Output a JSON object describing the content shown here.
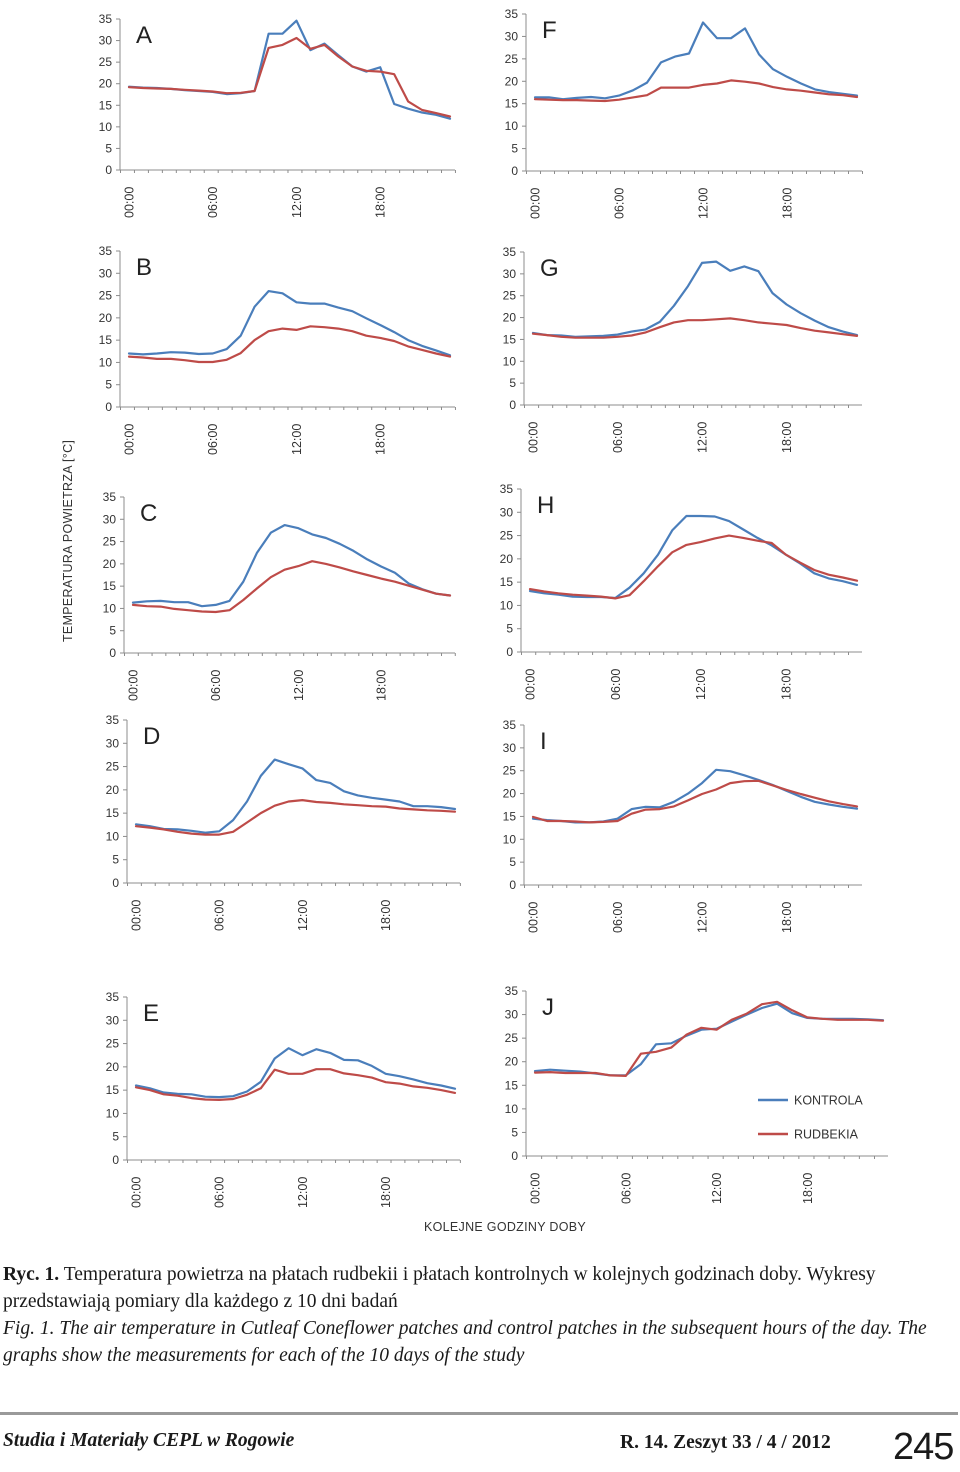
{
  "figure": {
    "ylabel": "TEMPERATURA POWIETRZA [°C]",
    "xlabel": "KOLEJNE GODZINY DOBY",
    "legend": {
      "kontrola": "KONTROLA",
      "rudbekia": "RUDBEKIA"
    },
    "colors": {
      "kontrola": "#4a7ebb",
      "rudbekia": "#be4b48",
      "axis": "#8c8c8c",
      "text": "#333333"
    }
  },
  "chart_data": [
    {
      "type": "line",
      "panel": "A",
      "hours": [
        0,
        1,
        2,
        3,
        4,
        5,
        6,
        7,
        8,
        9,
        10,
        11,
        12,
        13,
        14,
        15,
        16,
        17,
        18,
        19,
        20,
        21,
        22,
        23
      ],
      "x_ticks": [
        "00:00",
        "06:00",
        "12:00",
        "18:00"
      ],
      "y_ticks": [
        0,
        5,
        10,
        15,
        20,
        25,
        30,
        35
      ],
      "ylim": [
        0,
        35
      ],
      "series": [
        {
          "name": "KONTROLA",
          "values": [
            19.3,
            19.1,
            19.0,
            18.8,
            18.5,
            18.3,
            18.1,
            17.6,
            17.8,
            18.3,
            31.6,
            31.6,
            34.6,
            27.8,
            29.3,
            26.6,
            24.0,
            22.8,
            23.8,
            15.3,
            14.2,
            13.3,
            12.8,
            11.9
          ]
        },
        {
          "name": "RUDBEKIA",
          "values": [
            19.2,
            19.0,
            18.9,
            18.8,
            18.6,
            18.4,
            18.2,
            17.8,
            17.9,
            18.3,
            28.3,
            29.0,
            30.6,
            28.1,
            29.0,
            26.3,
            24.0,
            23.0,
            22.8,
            22.2,
            15.9,
            13.9,
            13.2,
            12.4
          ]
        }
      ]
    },
    {
      "type": "line",
      "panel": "B",
      "hours": [
        0,
        1,
        2,
        3,
        4,
        5,
        6,
        7,
        8,
        9,
        10,
        11,
        12,
        13,
        14,
        15,
        16,
        17,
        18,
        19,
        20,
        21,
        22,
        23
      ],
      "x_ticks": [
        "00:00",
        "06:00",
        "12:00",
        "18:00"
      ],
      "y_ticks": [
        0,
        5,
        10,
        15,
        20,
        25,
        30,
        35
      ],
      "ylim": [
        0,
        35
      ],
      "series": [
        {
          "name": "KONTROLA",
          "values": [
            12.0,
            11.8,
            12.0,
            12.3,
            12.2,
            11.9,
            12.0,
            13.0,
            16.0,
            22.5,
            26.0,
            25.5,
            23.5,
            23.2,
            23.2,
            22.3,
            21.5,
            19.9,
            18.4,
            16.8,
            15.0,
            13.7,
            12.7,
            11.6
          ]
        },
        {
          "name": "RUDBEKIA",
          "values": [
            11.3,
            11.1,
            10.8,
            10.8,
            10.5,
            10.1,
            10.1,
            10.6,
            12.1,
            15.0,
            17.0,
            17.6,
            17.3,
            18.1,
            17.9,
            17.6,
            17.0,
            16.0,
            15.5,
            14.8,
            13.6,
            12.8,
            12.0,
            11.3
          ]
        }
      ]
    },
    {
      "type": "line",
      "panel": "C",
      "hours": [
        0,
        1,
        2,
        3,
        4,
        5,
        6,
        7,
        8,
        9,
        10,
        11,
        12,
        13,
        14,
        15,
        16,
        17,
        18,
        19,
        20,
        21,
        22,
        23
      ],
      "x_ticks": [
        "00:00",
        "06:00",
        "12:00",
        "18:00"
      ],
      "y_ticks": [
        0,
        5,
        10,
        15,
        20,
        25,
        30,
        35
      ],
      "ylim": [
        0,
        35
      ],
      "series": [
        {
          "name": "KONTROLA",
          "values": [
            11.3,
            11.6,
            11.7,
            11.4,
            11.4,
            10.5,
            10.8,
            11.7,
            16.0,
            22.5,
            27.0,
            28.7,
            28.0,
            26.6,
            25.8,
            24.5,
            22.9,
            21.0,
            19.4,
            18.0,
            15.6,
            14.3,
            13.3,
            12.9
          ]
        },
        {
          "name": "RUDBEKIA",
          "values": [
            10.8,
            10.5,
            10.4,
            9.9,
            9.6,
            9.3,
            9.2,
            9.6,
            11.9,
            14.5,
            17.0,
            18.7,
            19.5,
            20.6,
            20.0,
            19.2,
            18.3,
            17.5,
            16.7,
            16.0,
            15.1,
            14.2,
            13.3,
            12.9
          ]
        }
      ]
    },
    {
      "type": "line",
      "panel": "D",
      "hours": [
        0,
        1,
        2,
        3,
        4,
        5,
        6,
        7,
        8,
        9,
        10,
        11,
        12,
        13,
        14,
        15,
        16,
        17,
        18,
        19,
        20,
        21,
        22,
        23
      ],
      "x_ticks": [
        "00:00",
        "06:00",
        "12:00",
        "18:00"
      ],
      "y_ticks": [
        0,
        5,
        10,
        15,
        20,
        25,
        30,
        35
      ],
      "ylim": [
        0,
        35
      ],
      "series": [
        {
          "name": "KONTROLA",
          "values": [
            12.6,
            12.2,
            11.6,
            11.5,
            11.2,
            10.8,
            11.1,
            13.5,
            17.5,
            23.0,
            26.5,
            25.5,
            24.6,
            22.1,
            21.5,
            19.7,
            18.8,
            18.3,
            17.9,
            17.5,
            16.5,
            16.5,
            16.3,
            15.9
          ]
        },
        {
          "name": "RUDBEKIA",
          "values": [
            12.2,
            11.9,
            11.5,
            11.0,
            10.6,
            10.4,
            10.4,
            11.0,
            13.0,
            15.0,
            16.6,
            17.5,
            17.8,
            17.4,
            17.2,
            16.9,
            16.7,
            16.5,
            16.4,
            16.0,
            15.8,
            15.6,
            15.5,
            15.3
          ]
        }
      ]
    },
    {
      "type": "line",
      "panel": "E",
      "hours": [
        0,
        1,
        2,
        3,
        4,
        5,
        6,
        7,
        8,
        9,
        10,
        11,
        12,
        13,
        14,
        15,
        16,
        17,
        18,
        19,
        20,
        21,
        22,
        23
      ],
      "x_ticks": [
        "00:00",
        "06:00",
        "12:00",
        "18:00"
      ],
      "y_ticks": [
        0,
        5,
        10,
        15,
        20,
        25,
        30,
        35
      ],
      "ylim": [
        0,
        35
      ],
      "series": [
        {
          "name": "KONTROLA",
          "values": [
            16.0,
            15.4,
            14.5,
            14.2,
            14.1,
            13.6,
            13.5,
            13.7,
            14.7,
            16.8,
            21.8,
            24.0,
            22.5,
            23.8,
            23.0,
            21.5,
            21.4,
            20.2,
            18.5,
            18.0,
            17.3,
            16.5,
            16.0,
            15.3
          ]
        },
        {
          "name": "RUDBEKIA",
          "values": [
            15.6,
            15.0,
            14.1,
            13.8,
            13.3,
            13.0,
            12.9,
            13.1,
            14.0,
            15.4,
            19.4,
            18.5,
            18.5,
            19.5,
            19.5,
            18.6,
            18.2,
            17.7,
            16.7,
            16.4,
            15.8,
            15.5,
            15.0,
            14.4
          ]
        }
      ]
    },
    {
      "type": "line",
      "panel": "F",
      "hours": [
        0,
        1,
        2,
        3,
        4,
        5,
        6,
        7,
        8,
        9,
        10,
        11,
        12,
        13,
        14,
        15,
        16,
        17,
        18,
        19,
        20,
        21,
        22,
        23
      ],
      "x_ticks": [
        "00:00",
        "06:00",
        "12:00",
        "18:00"
      ],
      "y_ticks": [
        0,
        5,
        10,
        15,
        20,
        25,
        30,
        35
      ],
      "ylim": [
        0,
        35
      ],
      "series": [
        {
          "name": "KONTROLA",
          "values": [
            16.4,
            16.4,
            16.0,
            16.3,
            16.5,
            16.2,
            16.8,
            18.0,
            19.7,
            24.2,
            25.5,
            26.2,
            33.1,
            29.6,
            29.6,
            31.8,
            26.0,
            22.7,
            21.0,
            19.5,
            18.2,
            17.6,
            17.2,
            16.8
          ]
        },
        {
          "name": "RUDBEKIA",
          "values": [
            16.0,
            15.9,
            15.8,
            15.8,
            15.7,
            15.6,
            15.9,
            16.4,
            16.9,
            18.6,
            18.6,
            18.6,
            19.2,
            19.5,
            20.2,
            19.9,
            19.5,
            18.7,
            18.2,
            17.9,
            17.5,
            17.1,
            16.9,
            16.5
          ]
        }
      ]
    },
    {
      "type": "line",
      "panel": "G",
      "hours": [
        0,
        1,
        2,
        3,
        4,
        5,
        6,
        7,
        8,
        9,
        10,
        11,
        12,
        13,
        14,
        15,
        16,
        17,
        18,
        19,
        20,
        21,
        22,
        23
      ],
      "x_ticks": [
        "00:00",
        "06:00",
        "12:00",
        "18:00"
      ],
      "y_ticks": [
        0,
        5,
        10,
        15,
        20,
        25,
        30,
        35
      ],
      "ylim": [
        0,
        35
      ],
      "series": [
        {
          "name": "KONTROLA",
          "values": [
            16.5,
            16.0,
            15.9,
            15.6,
            15.7,
            15.8,
            16.1,
            16.8,
            17.3,
            19.0,
            22.7,
            27.2,
            32.5,
            32.8,
            30.7,
            31.7,
            30.6,
            25.6,
            23.0,
            21.0,
            19.3,
            17.8,
            16.8,
            16.0
          ]
        },
        {
          "name": "RUDBEKIA",
          "values": [
            16.3,
            16.0,
            15.6,
            15.4,
            15.4,
            15.4,
            15.6,
            15.9,
            16.6,
            17.8,
            18.9,
            19.4,
            19.4,
            19.6,
            19.8,
            19.4,
            18.9,
            18.6,
            18.3,
            17.6,
            17.0,
            16.6,
            16.2,
            15.8
          ]
        }
      ]
    },
    {
      "type": "line",
      "panel": "H",
      "hours": [
        0,
        1,
        2,
        3,
        4,
        5,
        6,
        7,
        8,
        9,
        10,
        11,
        12,
        13,
        14,
        15,
        16,
        17,
        18,
        19,
        20,
        21,
        22,
        23
      ],
      "x_ticks": [
        "00:00",
        "06:00",
        "12:00",
        "18:00"
      ],
      "y_ticks": [
        0,
        5,
        10,
        15,
        20,
        25,
        30,
        35
      ],
      "ylim": [
        0,
        35
      ],
      "series": [
        {
          "name": "KONTROLA",
          "values": [
            13.1,
            12.6,
            12.3,
            11.9,
            11.8,
            11.8,
            11.6,
            13.8,
            16.9,
            20.9,
            26.1,
            29.2,
            29.2,
            29.1,
            28.1,
            26.3,
            24.5,
            22.9,
            20.9,
            19.0,
            16.9,
            15.8,
            15.2,
            14.4
          ]
        },
        {
          "name": "RUDBEKIA",
          "values": [
            13.5,
            13.0,
            12.6,
            12.3,
            12.1,
            11.9,
            11.5,
            12.2,
            15.2,
            18.4,
            21.4,
            23.0,
            23.6,
            24.4,
            25.0,
            24.5,
            23.9,
            23.4,
            20.9,
            19.2,
            17.6,
            16.6,
            16.0,
            15.3
          ]
        }
      ]
    },
    {
      "type": "line",
      "panel": "I",
      "hours": [
        0,
        1,
        2,
        3,
        4,
        5,
        6,
        7,
        8,
        9,
        10,
        11,
        12,
        13,
        14,
        15,
        16,
        17,
        18,
        19,
        20,
        21,
        22,
        23
      ],
      "x_ticks": [
        "00:00",
        "06:00",
        "12:00",
        "18:00"
      ],
      "y_ticks": [
        0,
        5,
        10,
        15,
        20,
        25,
        30,
        35
      ],
      "ylim": [
        0,
        35
      ],
      "series": [
        {
          "name": "KONTROLA",
          "values": [
            14.5,
            14.2,
            14.0,
            13.7,
            13.7,
            13.9,
            14.5,
            16.6,
            17.1,
            17.0,
            18.2,
            20.0,
            22.3,
            25.2,
            24.9,
            24.0,
            23.0,
            21.9,
            20.6,
            19.3,
            18.2,
            17.6,
            17.1,
            16.7
          ]
        },
        {
          "name": "RUDBEKIA",
          "values": [
            14.9,
            14.0,
            14.0,
            13.9,
            13.7,
            13.8,
            14.0,
            15.6,
            16.5,
            16.6,
            17.2,
            18.5,
            19.9,
            20.9,
            22.3,
            22.7,
            22.8,
            21.8,
            20.8,
            19.9,
            19.1,
            18.3,
            17.7,
            17.2
          ]
        }
      ]
    },
    {
      "type": "line",
      "panel": "J",
      "hours": [
        0,
        1,
        2,
        3,
        4,
        5,
        6,
        7,
        8,
        9,
        10,
        11,
        12,
        13,
        14,
        15,
        16,
        17,
        18,
        19,
        20,
        21,
        22,
        23
      ],
      "x_ticks": [
        "00:00",
        "06:00",
        "12:00",
        "18:00"
      ],
      "y_ticks": [
        0,
        5,
        10,
        15,
        20,
        25,
        30,
        35
      ],
      "ylim": [
        0,
        35
      ],
      "series": [
        {
          "name": "KONTROLA",
          "values": [
            18.0,
            18.3,
            18.1,
            17.9,
            17.5,
            17.1,
            17.1,
            19.5,
            23.7,
            23.9,
            25.5,
            26.8,
            27.0,
            28.5,
            30.0,
            31.4,
            32.3,
            30.3,
            29.3,
            29.1,
            29.1,
            29.1,
            29.0,
            28.8
          ]
        },
        {
          "name": "RUDBEKIA",
          "values": [
            17.7,
            17.8,
            17.6,
            17.6,
            17.6,
            17.1,
            17.0,
            21.7,
            22.1,
            23.0,
            25.7,
            27.2,
            26.8,
            28.9,
            30.2,
            32.2,
            32.7,
            30.9,
            29.4,
            29.1,
            28.9,
            28.9,
            28.9,
            28.7
          ]
        }
      ]
    }
  ],
  "caption": {
    "pl_label": "Ryc. 1.",
    "pl_text": " Temperatura powietrza na płatach rudbekii i płatach kontrolnych w kolejnych godzinach doby. Wykresy przedstawiają pomiary dla każdego z 10 dni badań",
    "en_label": "Fig. 1.",
    "en_text": " The air temperature in Cutleaf Coneflower patches and control patches in the subsequent hours of the day. The graphs show the measurements for each of the 10 days of the study"
  },
  "footer": {
    "journal": "Studia i Materiały CEPL w Rogowie",
    "issue": "R. 14. Zeszyt 33 / 4 / 2012",
    "page_number": "245"
  }
}
